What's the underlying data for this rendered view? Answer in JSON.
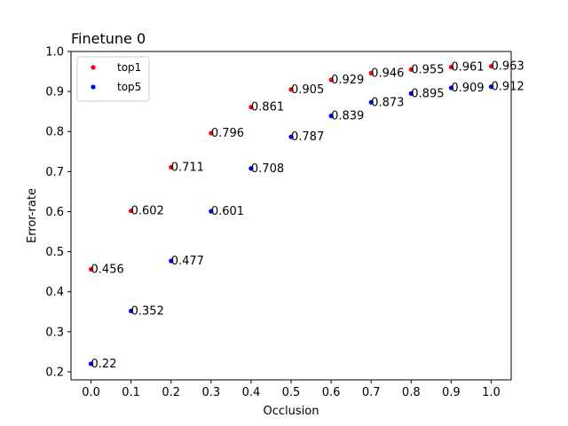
{
  "chart_data": {
    "type": "scatter",
    "title": "Finetune 0",
    "xlabel": "Occlusion",
    "ylabel": "Error-rate",
    "xlim": [
      -0.05,
      1.05
    ],
    "ylim": [
      0.18,
      1.0
    ],
    "xticks": [
      0.0,
      0.1,
      0.2,
      0.3,
      0.4,
      0.5,
      0.6,
      0.7,
      0.8,
      0.9,
      1.0
    ],
    "xtick_labels": [
      "0.0",
      "0.1",
      "0.2",
      "0.3",
      "0.4",
      "0.5",
      "0.6",
      "0.7",
      "0.8",
      "0.9",
      "1.0"
    ],
    "yticks": [
      0.2,
      0.3,
      0.4,
      0.5,
      0.6,
      0.7,
      0.8,
      0.9,
      1.0
    ],
    "ytick_labels": [
      "0.2",
      "0.3",
      "0.4",
      "0.5",
      "0.6",
      "0.7",
      "0.8",
      "0.9",
      "1.0"
    ],
    "grid": false,
    "legend": "upper-left",
    "x": [
      0.0,
      0.1,
      0.2,
      0.3,
      0.4,
      0.5,
      0.6,
      0.7,
      0.8,
      0.9,
      1.0
    ],
    "series": [
      {
        "name": "top1",
        "color": "#ff0000",
        "values": [
          0.456,
          0.602,
          0.711,
          0.796,
          0.861,
          0.905,
          0.929,
          0.946,
          0.955,
          0.961,
          0.963
        ],
        "labels": [
          "0.456",
          "0.602",
          "0.711",
          "0.796",
          "0.861",
          "0.905",
          "0.929",
          "0.946",
          "0.955",
          "0.961",
          "0.963"
        ]
      },
      {
        "name": "top5",
        "color": "#0000ff",
        "values": [
          0.22,
          0.352,
          0.477,
          0.601,
          0.708,
          0.787,
          0.839,
          0.873,
          0.895,
          0.909,
          0.912
        ],
        "labels": [
          "0.22",
          "0.352",
          "0.477",
          "0.601",
          "0.708",
          "0.787",
          "0.839",
          "0.873",
          "0.895",
          "0.909",
          "0.912"
        ]
      }
    ]
  }
}
